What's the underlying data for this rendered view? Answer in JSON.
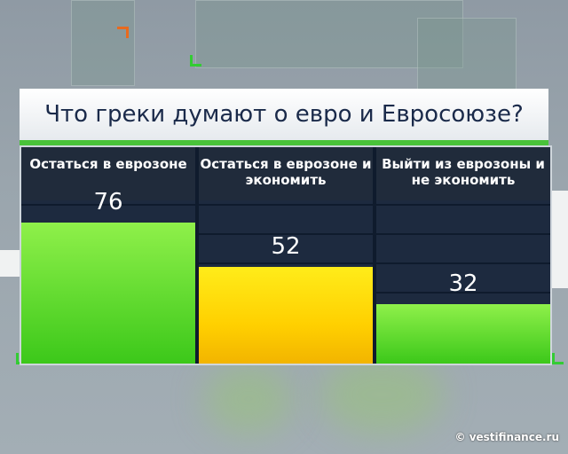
{
  "chart_data": {
    "type": "bar",
    "title": "Что греки думают о евро и Евросоюзе?",
    "categories": [
      "Остаться в еврозоне",
      "Остаться в еврозоне и экономить",
      "Выйти из еврозоны и не экономить"
    ],
    "values": [
      76,
      52,
      32
    ],
    "ylim": [
      0,
      115
    ],
    "legend": "none",
    "colors": [
      "#5fd82e",
      "#ffd400",
      "#5fd82e"
    ]
  },
  "credit": "© vestifinance.ru"
}
